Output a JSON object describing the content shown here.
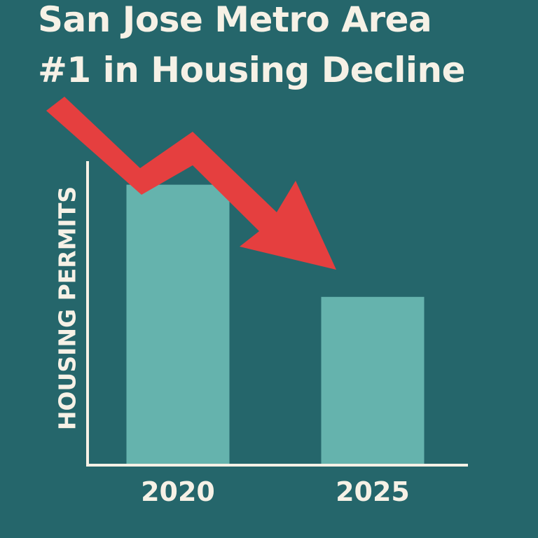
{
  "colors": {
    "background": "#25666b",
    "bar": "#65b3ad",
    "axis": "#f6f1e6",
    "text": "#f6f1e6",
    "arrow": "#e53f3f"
  },
  "header": {
    "title_line_1": "San Jose Metro Area",
    "title_line_2": "#1 in Housing Decline"
  },
  "chart_data": {
    "type": "bar",
    "title": "San Jose Metro Area #1 in Housing Decline",
    "ylabel": "HOUSING PERMITS",
    "xlabel": "",
    "categories": [
      "2020",
      "2025"
    ],
    "values": [
      85,
      51
    ],
    "ylim": [
      0,
      100
    ],
    "grid": false,
    "legend": "none",
    "annotation_icon": "downward-trend-arrow-icon"
  }
}
